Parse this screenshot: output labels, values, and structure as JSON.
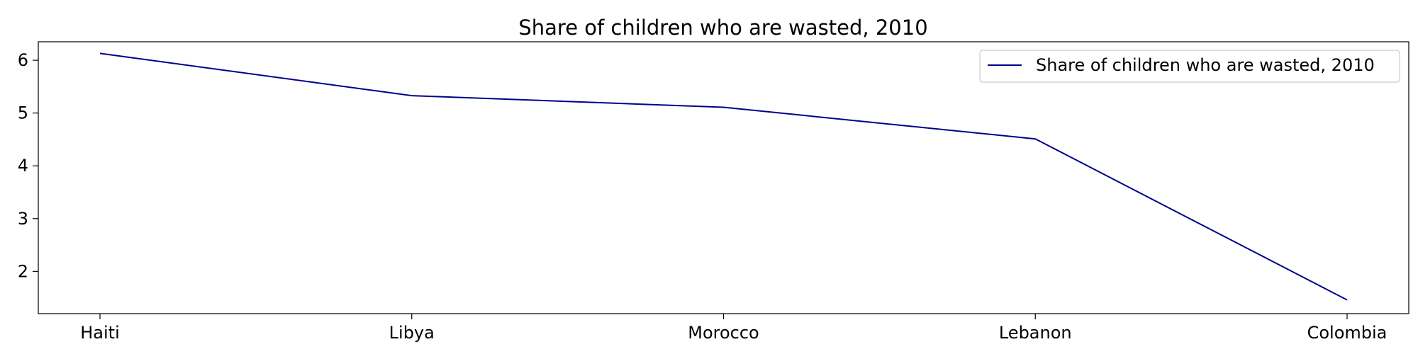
{
  "chart_data": {
    "type": "line",
    "title": "Share of children who are wasted, 2010",
    "xlabel": "",
    "ylabel": "",
    "categories": [
      "Haiti",
      "Libya",
      "Morocco",
      "Lebanon",
      "Colombia"
    ],
    "series": [
      {
        "name": "Share of children who are wasted, 2010",
        "values": [
          6.13,
          5.33,
          5.11,
          4.51,
          1.46
        ],
        "color": "#00008b"
      }
    ],
    "ylim": [
      1.2,
      6.35
    ],
    "yticks": [
      2,
      3,
      4,
      5,
      6
    ],
    "grid": false,
    "legend_position": "top-right"
  }
}
